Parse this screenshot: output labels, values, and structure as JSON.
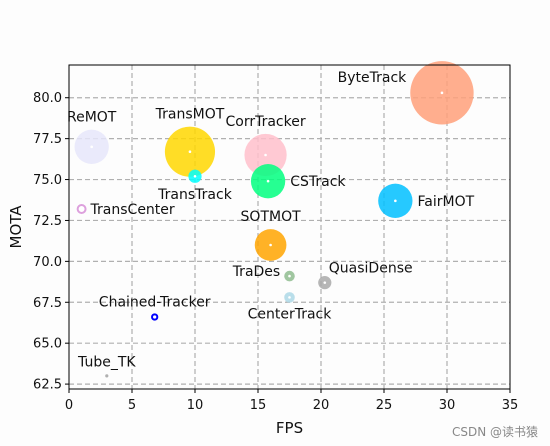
{
  "chart_data": {
    "type": "scatter",
    "title": "",
    "xlabel": "FPS",
    "ylabel": "MOTA",
    "xlim": [
      0,
      35
    ],
    "ylim": [
      62.2,
      82.0
    ],
    "xticks": [
      0,
      5,
      10,
      15,
      20,
      25,
      30,
      35
    ],
    "xtick_labels": [
      "0",
      "5",
      "10",
      "15",
      "20",
      "25",
      "30",
      "35"
    ],
    "yticks": [
      62.5,
      65.0,
      67.5,
      70.0,
      72.5,
      75.0,
      77.5,
      80.0
    ],
    "ytick_labels": [
      "62.5",
      "65.0",
      "67.5",
      "70.0",
      "72.5",
      "75.0",
      "77.5",
      "80.0"
    ],
    "grid": true,
    "grid_style": "dashed",
    "bubble_size_note": "marker area encodes a third variable (not labeled)",
    "points": [
      {
        "label": "ByteTrack",
        "x": 29.6,
        "y": 80.3,
        "size": 24,
        "color": "#FFA07A",
        "label_pos": "left"
      },
      {
        "label": "ReMOT",
        "x": 1.8,
        "y": 77.0,
        "size": 13,
        "color": "#E6E6FA",
        "label_pos": "above"
      },
      {
        "label": "TransMOT",
        "x": 9.6,
        "y": 76.7,
        "size": 19,
        "color": "#FFD700",
        "label_pos": "above"
      },
      {
        "label": "CorrTracker",
        "x": 15.6,
        "y": 76.5,
        "size": 16,
        "color": "#FFC0CB",
        "label_pos": "above"
      },
      {
        "label": "TransTrack",
        "x": 10.0,
        "y": 75.2,
        "size": 5,
        "color": "#00FFFF",
        "label_pos": "below"
      },
      {
        "label": "CSTrack",
        "x": 15.8,
        "y": 74.9,
        "size": 13,
        "color": "#00FF7F",
        "label_pos": "right"
      },
      {
        "label": "TransCenter",
        "x": 1.0,
        "y": 73.2,
        "size": 3,
        "color": "#DDA0DD",
        "label_pos": "right"
      },
      {
        "label": "FairMOT",
        "x": 25.9,
        "y": 73.7,
        "size": 13,
        "color": "#00BFFF",
        "label_pos": "right"
      },
      {
        "label": "SOTMOT",
        "x": 16.0,
        "y": 71.0,
        "size": 12,
        "color": "#FFA500",
        "label_pos": "above"
      },
      {
        "label": "TraDes",
        "x": 17.5,
        "y": 69.1,
        "size": 4,
        "color": "#8FBC8F",
        "label_pos": "left"
      },
      {
        "label": "QuasiDense",
        "x": 20.3,
        "y": 68.7,
        "size": 5,
        "color": "#A9A9A9",
        "label_pos": "above-right"
      },
      {
        "label": "CenterTrack",
        "x": 17.5,
        "y": 67.8,
        "size": 4,
        "color": "#ADD8E6",
        "label_pos": "below"
      },
      {
        "label": "Chained-Tracker",
        "x": 6.8,
        "y": 66.6,
        "size": 2,
        "color": "#0000FF",
        "label_pos": "above"
      },
      {
        "label": "Tube_TK",
        "x": 3.0,
        "y": 63.0,
        "size": 1,
        "color": "#000000",
        "label_pos": "above"
      }
    ]
  },
  "watermark": "CSDN @读书猿"
}
